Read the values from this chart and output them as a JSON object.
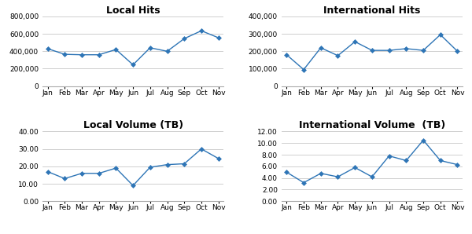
{
  "months": [
    "Jan",
    "Feb",
    "Mar",
    "Apr",
    "May",
    "Jun",
    "Jul",
    "Aug",
    "Sep",
    "Oct",
    "Nov"
  ],
  "local_hits": [
    430000,
    365000,
    360000,
    360000,
    420000,
    245000,
    440000,
    400000,
    545000,
    635000,
    555000
  ],
  "intl_hits": [
    180000,
    95000,
    220000,
    175000,
    255000,
    205000,
    205000,
    215000,
    205000,
    295000,
    200000
  ],
  "local_vol": [
    17.0,
    13.0,
    16.0,
    16.0,
    19.0,
    9.0,
    19.5,
    21.0,
    21.5,
    30.0,
    24.5
  ],
  "intl_vol": [
    5.0,
    3.2,
    4.8,
    4.2,
    5.8,
    4.2,
    7.8,
    7.0,
    10.5,
    7.0,
    6.3
  ],
  "line_color": "#2E75B6",
  "marker": "D",
  "marker_size": 3,
  "titles": [
    "Local Hits",
    "International Hits",
    "Local Volume (TB)",
    "International Volume  (TB)"
  ],
  "local_hits_ylim": [
    0,
    800000
  ],
  "local_hits_yticks": [
    0,
    200000,
    400000,
    600000,
    800000
  ],
  "intl_hits_ylim": [
    0,
    400000
  ],
  "intl_hits_yticks": [
    0,
    100000,
    200000,
    300000,
    400000
  ],
  "local_vol_ylim": [
    0,
    40
  ],
  "local_vol_yticks": [
    0.0,
    10.0,
    20.0,
    30.0,
    40.0
  ],
  "intl_vol_ylim": [
    0,
    12
  ],
  "intl_vol_yticks": [
    0.0,
    2.0,
    4.0,
    6.0,
    8.0,
    10.0,
    12.0
  ],
  "bg_color": "#ffffff",
  "grid_color": "#c8c8c8",
  "title_fontsize": 9,
  "tick_fontsize": 6.5
}
